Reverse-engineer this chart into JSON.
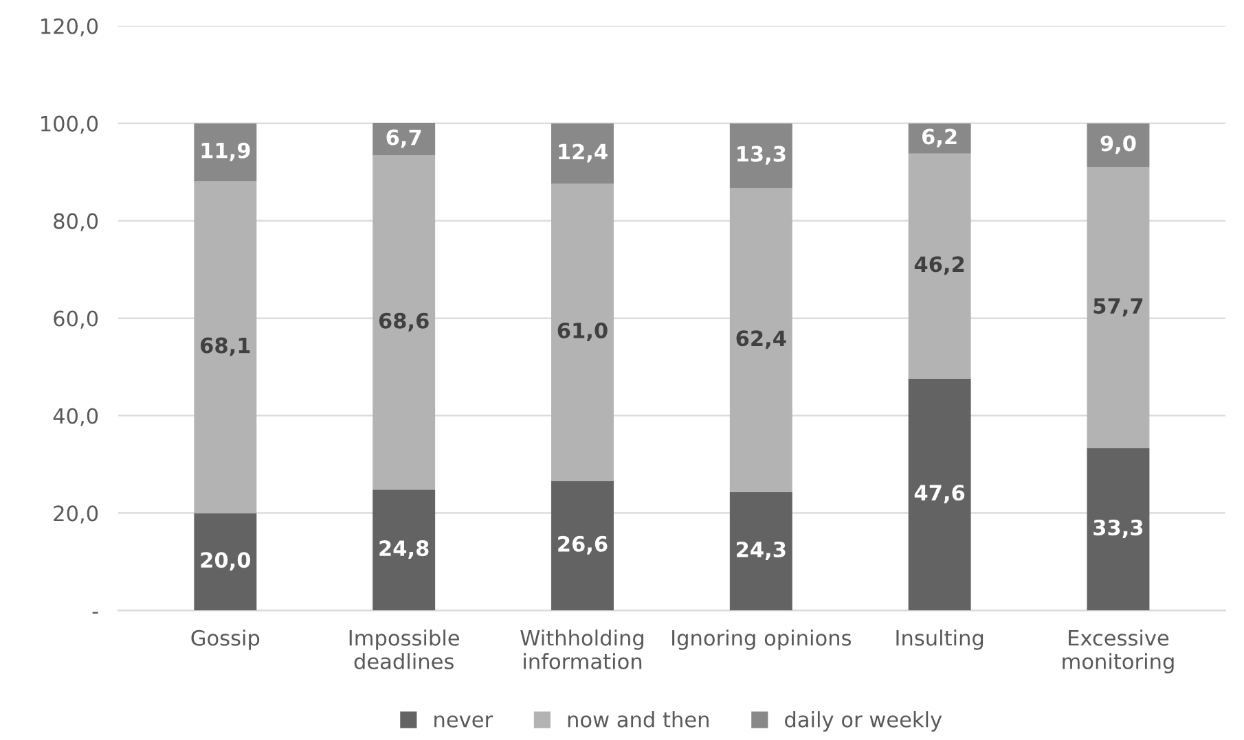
{
  "chart_data": {
    "type": "bar",
    "stacked": true,
    "categories": [
      "Gossip",
      "Impossible\ndeadlines",
      "Withholding\ninformation",
      "Ignoring opinions",
      "Insulting",
      "Excessive\nmonitoring"
    ],
    "series": [
      {
        "name": "never",
        "color": "#636363",
        "values": [
          20.0,
          24.8,
          26.6,
          24.3,
          47.6,
          33.3
        ],
        "value_labels": [
          "20,0",
          "24,8",
          "26,6",
          "24,3",
          "47,6",
          "33,3"
        ]
      },
      {
        "name": "now and then",
        "color": "#b3b3b3",
        "values": [
          68.1,
          68.6,
          61.0,
          62.4,
          46.2,
          57.7
        ],
        "value_labels": [
          "68,1",
          "68,6",
          "61,0",
          "62,4",
          "46,2",
          "57,7"
        ]
      },
      {
        "name": "daily or weekly",
        "color": "#898989",
        "values": [
          11.9,
          6.7,
          12.4,
          13.3,
          6.2,
          9.0
        ],
        "value_labels": [
          "11,9",
          "6,7",
          "12,4",
          "13,3",
          "6,2",
          "9,0"
        ]
      }
    ],
    "ylim": [
      0,
      120
    ],
    "yticks": [
      {
        "value": 0,
        "label": "-"
      },
      {
        "value": 20,
        "label": "20,0"
      },
      {
        "value": 40,
        "label": "40,0"
      },
      {
        "value": 60,
        "label": "60,0"
      },
      {
        "value": 80,
        "label": "80,0"
      },
      {
        "value": 100,
        "label": "100,0"
      },
      {
        "value": 120,
        "label": "120,0"
      }
    ],
    "grid": "y",
    "legend": "bottom"
  }
}
